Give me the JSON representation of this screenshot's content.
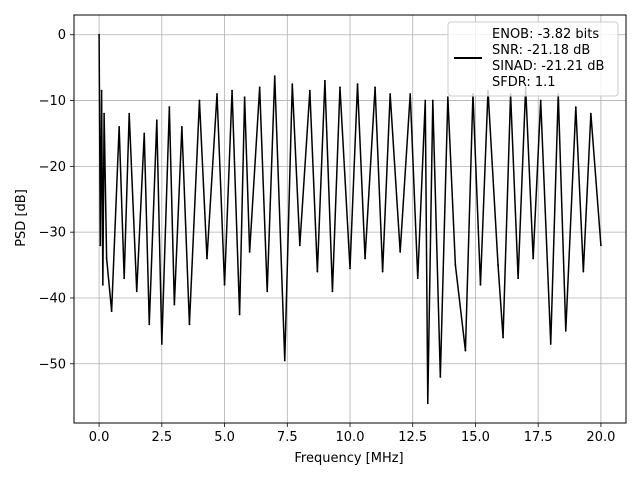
{
  "chart_data": {
    "type": "line",
    "title": "",
    "xlabel": "Frequency [MHz]",
    "ylabel": "PSD [dB]",
    "xlim": [
      -1.0,
      21.0
    ],
    "ylim": [
      -59.0,
      3.0
    ],
    "xticks": [
      0.0,
      2.5,
      5.0,
      7.5,
      10.0,
      12.5,
      15.0,
      17.5,
      20.0
    ],
    "xtick_labels": [
      "0.0",
      "2.5",
      "5.0",
      "7.5",
      "10.0",
      "12.5",
      "15.0",
      "17.5",
      "20.0"
    ],
    "yticks": [
      0,
      -10,
      -20,
      -30,
      -40,
      -50
    ],
    "ytick_labels": [
      "0",
      "−10",
      "−20",
      "−30",
      "−40",
      "−50"
    ],
    "grid": true,
    "legend": {
      "placement": "top-right",
      "lines": [
        "ENOB: -3.82 bits",
        "SNR: -21.18 dB",
        "SINAD: -21.21 dB",
        "SFDR: 1.1"
      ]
    },
    "series": [
      {
        "color": "#000000",
        "x": [
          0.0,
          0.05,
          0.1,
          0.15,
          0.2,
          0.3,
          0.5,
          0.8,
          1.0,
          1.2,
          1.5,
          1.8,
          2.0,
          2.3,
          2.5,
          2.8,
          3.0,
          3.3,
          3.6,
          4.0,
          4.3,
          4.7,
          5.0,
          5.3,
          5.6,
          5.8,
          6.0,
          6.4,
          6.7,
          7.0,
          7.4,
          7.7,
          8.0,
          8.4,
          8.7,
          9.0,
          9.3,
          9.6,
          10.0,
          10.3,
          10.6,
          11.0,
          11.3,
          11.6,
          12.0,
          12.4,
          12.7,
          13.0,
          13.1,
          13.3,
          13.6,
          13.9,
          14.2,
          14.6,
          14.9,
          15.2,
          15.5,
          15.9,
          16.1,
          16.4,
          16.7,
          17.0,
          17.3,
          17.6,
          18.0,
          18.3,
          18.6,
          19.0,
          19.3,
          19.6,
          20.0
        ],
        "y": [
          0.0,
          -32.0,
          -8.5,
          -38.0,
          -12.0,
          -34.0,
          -42.0,
          -14.0,
          -37.0,
          -12.0,
          -39.0,
          -15.0,
          -44.0,
          -13.0,
          -47.0,
          -11.0,
          -41.0,
          -14.0,
          -44.0,
          -10.0,
          -34.0,
          -9.0,
          -38.0,
          -8.5,
          -42.5,
          -9.5,
          -33.0,
          -8.0,
          -39.0,
          -6.3,
          -49.5,
          -7.5,
          -32.0,
          -8.5,
          -36.0,
          -7.0,
          -39.0,
          -8.0,
          -35.5,
          -7.5,
          -34.0,
          -8.0,
          -36.0,
          -9.0,
          -33.0,
          -9.0,
          -37.0,
          -10.0,
          -56.0,
          -10.0,
          -52.0,
          -9.5,
          -35.0,
          -48.0,
          -9.0,
          -38.0,
          -8.5,
          -35.0,
          -46.0,
          -9.0,
          -37.0,
          -8.0,
          -34.0,
          -10.0,
          -47.0,
          -9.0,
          -45.0,
          -11.0,
          -36.0,
          -12.0,
          -32.0
        ]
      }
    ]
  }
}
